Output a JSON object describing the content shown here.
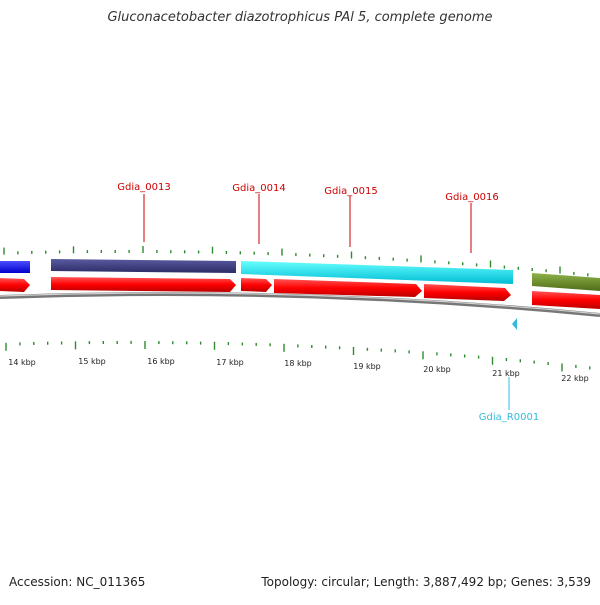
{
  "title": "Gluconacetobacter diazotrophicus PAl 5, complete genome",
  "footer": {
    "accession": "Accession: NC_011365",
    "summary": "Topology: circular; Length: 3,887,492 bp; Genes: 3,539"
  },
  "kbp_labels": [
    "14 kbp",
    "15 kbp",
    "16 kbp",
    "17 kbp",
    "18 kbp",
    "19 kbp",
    "20 kbp",
    "21 kbp",
    "22 kbp"
  ],
  "gene_labels": [
    {
      "name": "Gdia_0013",
      "color": "#cc0000"
    },
    {
      "name": "Gdia_0014",
      "color": "#cc0000"
    },
    {
      "name": "Gdia_0015",
      "color": "#cc0000"
    },
    {
      "name": "Gdia_0016",
      "color": "#cc0000"
    },
    {
      "name": "Gdia_R0001",
      "color": "#33bbdd"
    }
  ],
  "colors": {
    "cds": "#ff0000",
    "tick": "#2e8b2e",
    "gene_blue": "#1a1aff",
    "gene_navy": "#3d3d80",
    "gene_cyan": "#00e5ee",
    "gene_olive": "#6b8e23",
    "backbone": "#888888",
    "rna": "#33bbdd"
  }
}
